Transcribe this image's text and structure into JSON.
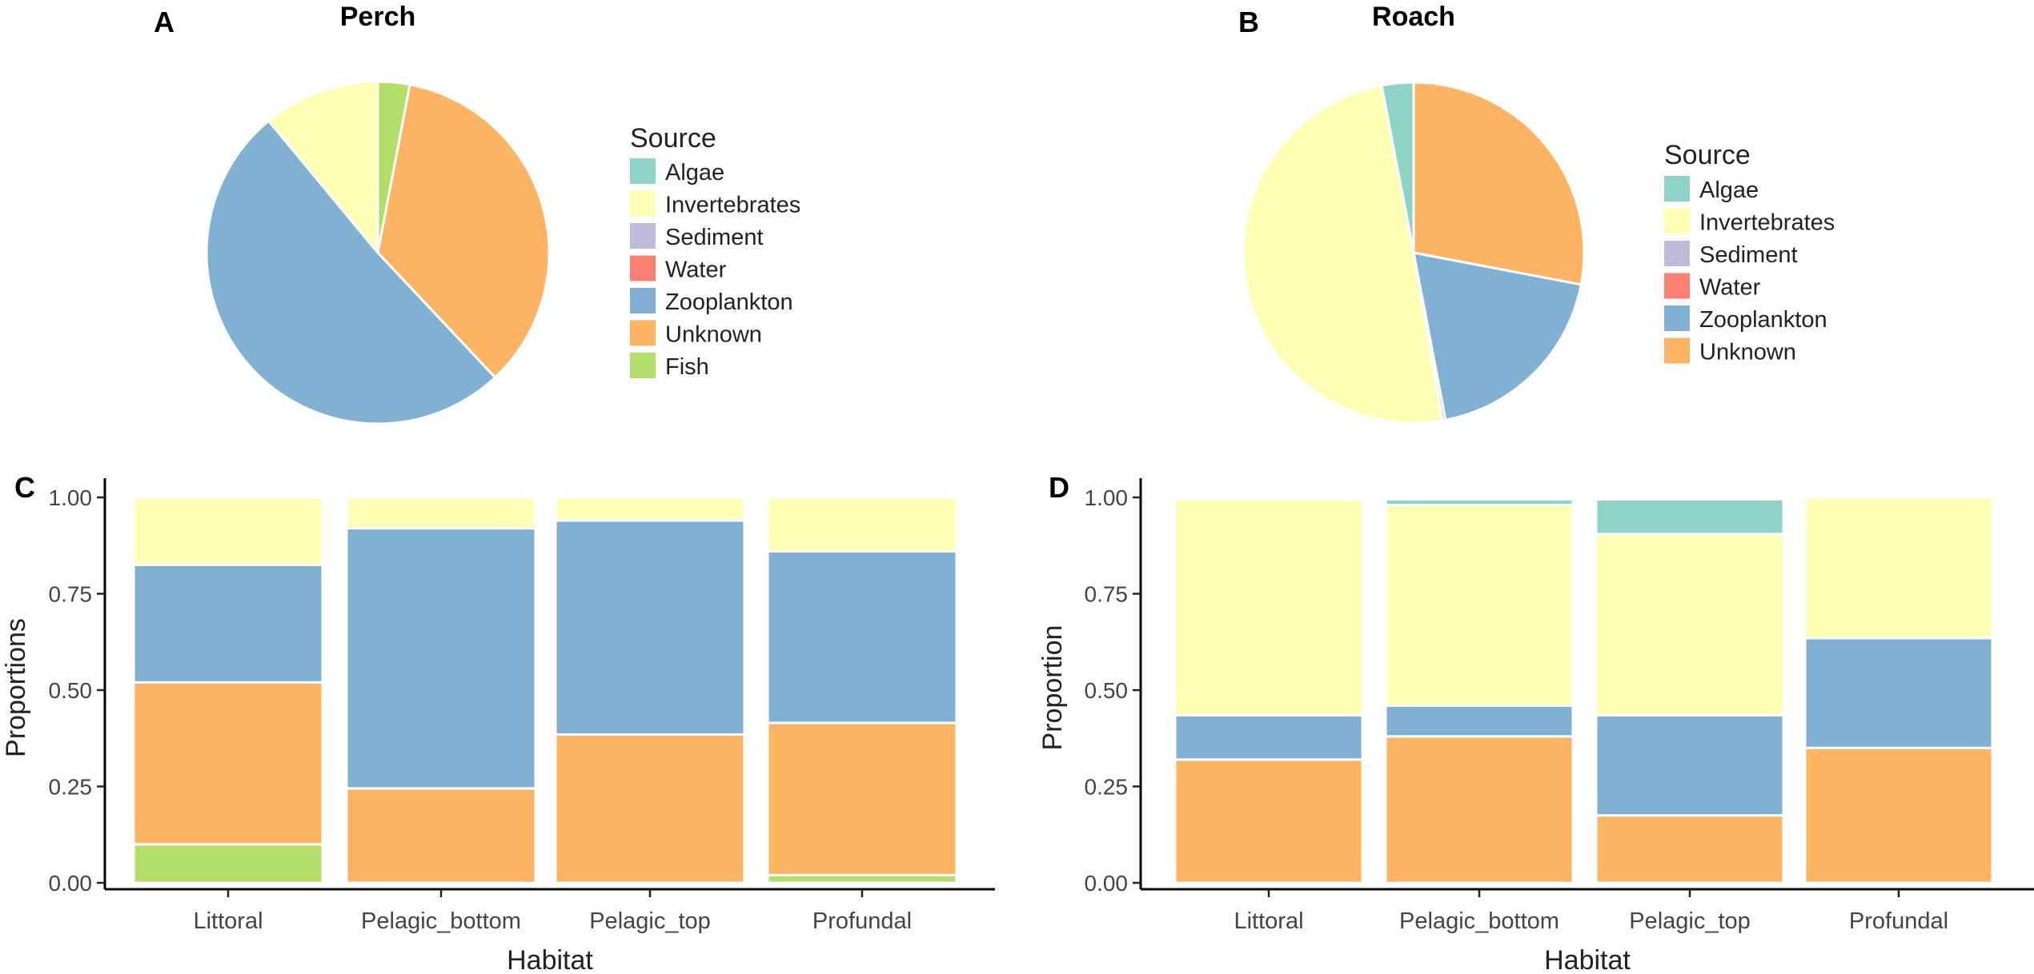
{
  "chart_data": [
    {
      "panel": "A",
      "type": "pie",
      "title": "Perch",
      "legend_title": "Source",
      "legend_position": "right",
      "legend": [
        {
          "label": "Algae",
          "color": "#8DD3C7"
        },
        {
          "label": "Invertebrates",
          "color": "#FFFFB3"
        },
        {
          "label": "Sediment",
          "color": "#BEBADA"
        },
        {
          "label": "Water",
          "color": "#FB8072"
        },
        {
          "label": "Zooplankton",
          "color": "#80B1D3"
        },
        {
          "label": "Unknown",
          "color": "#FDB462"
        },
        {
          "label": "Fish",
          "color": "#B3DE69"
        }
      ],
      "slices": [
        {
          "label": "Fish",
          "value": 0.03,
          "color": "#B3DE69"
        },
        {
          "label": "Unknown",
          "value": 0.35,
          "color": "#FDB462"
        },
        {
          "label": "Zooplankton",
          "value": 0.51,
          "color": "#80B1D3"
        },
        {
          "label": "Invertebrates",
          "value": 0.11,
          "color": "#FFFFB3"
        }
      ]
    },
    {
      "panel": "B",
      "type": "pie",
      "title": "Roach",
      "legend_title": "Source",
      "legend_position": "right",
      "legend": [
        {
          "label": "Algae",
          "color": "#8DD3C7"
        },
        {
          "label": "Invertebrates",
          "color": "#FFFFB3"
        },
        {
          "label": "Sediment",
          "color": "#BEBADA"
        },
        {
          "label": "Water",
          "color": "#FB8072"
        },
        {
          "label": "Zooplankton",
          "color": "#80B1D3"
        },
        {
          "label": "Unknown",
          "color": "#FDB462"
        }
      ],
      "slices": [
        {
          "label": "Unknown",
          "value": 0.28,
          "color": "#FDB462"
        },
        {
          "label": "Zooplankton",
          "value": 0.19,
          "color": "#80B1D3"
        },
        {
          "label": "Sediment",
          "value": 0.003,
          "color": "#BEBADA"
        },
        {
          "label": "Invertebrates",
          "value": 0.497,
          "color": "#FFFFB3"
        },
        {
          "label": "Algae",
          "value": 0.03,
          "color": "#8DD3C7"
        }
      ]
    },
    {
      "panel": "C",
      "type": "bar",
      "stacked": true,
      "xlabel": "Habitat",
      "ylabel": "Proportions",
      "ylim": [
        0,
        1
      ],
      "yticks": [
        "0.00",
        "0.25",
        "0.50",
        "0.75",
        "1.00"
      ],
      "categories": [
        "Littoral",
        "Pelagic_bottom",
        "Pelagic_top",
        "Profundal"
      ],
      "series": [
        {
          "name": "Fish",
          "color": "#B3DE69",
          "values": [
            0.1,
            0.0,
            0.0,
            0.02
          ]
        },
        {
          "name": "Unknown",
          "color": "#FDB462",
          "values": [
            0.42,
            0.245,
            0.385,
            0.395
          ]
        },
        {
          "name": "Zooplankton",
          "color": "#80B1D3",
          "values": [
            0.305,
            0.675,
            0.555,
            0.445
          ]
        },
        {
          "name": "Invertebrates",
          "color": "#FFFFB3",
          "values": [
            0.175,
            0.08,
            0.06,
            0.14
          ]
        }
      ]
    },
    {
      "panel": "D",
      "type": "bar",
      "stacked": true,
      "xlabel": "Habitat",
      "ylabel": "Proportion",
      "ylim": [
        0,
        1
      ],
      "yticks": [
        "0.00",
        "0.25",
        "0.50",
        "0.75",
        "1.00"
      ],
      "categories": [
        "Littoral",
        "Pelagic_bottom",
        "Pelagic_top",
        "Profundal"
      ],
      "series": [
        {
          "name": "Unknown",
          "color": "#FDB462",
          "values": [
            0.32,
            0.38,
            0.175,
            0.35
          ]
        },
        {
          "name": "Zooplankton",
          "color": "#80B1D3",
          "values": [
            0.115,
            0.08,
            0.26,
            0.285
          ]
        },
        {
          "name": "Invertebrates",
          "color": "#FFFFB3",
          "values": [
            0.56,
            0.52,
            0.47,
            0.365
          ]
        },
        {
          "name": "Algae",
          "color": "#8DD3C7",
          "values": [
            0.0,
            0.015,
            0.09,
            0.0
          ]
        }
      ]
    }
  ]
}
